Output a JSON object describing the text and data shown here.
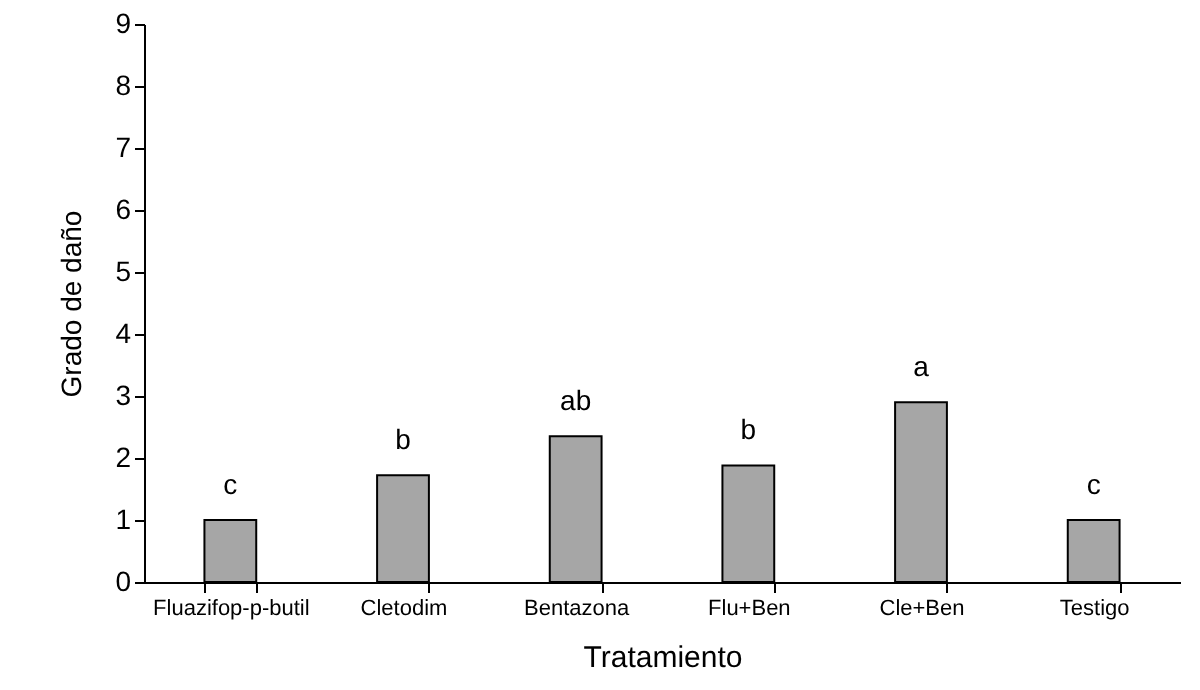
{
  "chart_data": {
    "type": "bar",
    "categories": [
      "Fluazifop-p-butil",
      "Cletodim",
      "Bentazona",
      "Flu+Ben",
      "Cle+Ben",
      "Testigo"
    ],
    "values": [
      1,
      1.72,
      2.35,
      1.88,
      2.9,
      1
    ],
    "color": "#a6a6a6",
    "xlabel": "Tratamiento",
    "ylabel": "Grado de daño",
    "ylim": [
      0,
      9
    ],
    "yticks": [
      0,
      1,
      2,
      3,
      4,
      5,
      6,
      7,
      8,
      9
    ],
    "grid": false,
    "annotations": [
      {
        "text": "c",
        "x": "Fluazifop-p-butil",
        "y": 1
      },
      {
        "text": "b",
        "x": "Cletodim",
        "y": 1.72
      },
      {
        "text": "ab",
        "x": "Bentazona",
        "y": 2.35
      },
      {
        "text": "b",
        "x": "Flu+Ben",
        "y": 1.88
      },
      {
        "text": "a",
        "x": "Cle+Ben",
        "y": 2.9
      },
      {
        "text": "c",
        "x": "Testigo",
        "y": 1
      }
    ]
  }
}
